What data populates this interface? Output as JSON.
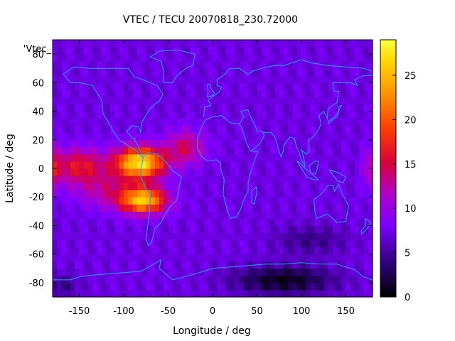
{
  "chart_data": {
    "type": "heatmap",
    "title": "VTEC / TECU 20070818_230.72000",
    "xlabel": "Longitude / deg",
    "ylabel": "Latitude / deg",
    "series_label": "'Vtec_",
    "xlim": [
      -180,
      180
    ],
    "ylim": [
      -90,
      90
    ],
    "x_ticks": [
      -150,
      -100,
      -50,
      0,
      50,
      100,
      150
    ],
    "y_ticks": [
      -80,
      -60,
      -40,
      -20,
      0,
      20,
      40,
      60,
      80
    ],
    "colorbar": {
      "min": 0,
      "max": 29,
      "ticks": [
        0,
        5,
        10,
        15,
        20,
        25
      ]
    },
    "grid_resolution_deg": 5,
    "field_description": {
      "background_tecu": 7.5,
      "features": [
        {
          "name": "equatorial-anomaly-peak-north",
          "lon": -80,
          "lat": 5,
          "tecu": 28
        },
        {
          "name": "equatorial-anomaly-peak-south",
          "lon": -80,
          "lat": -22,
          "tecu": 26
        },
        {
          "name": "pacific-enhancement",
          "lon": -150,
          "lat": 0,
          "tecu": 16
        },
        {
          "name": "western-atlantic-enhancement",
          "lon": -30,
          "lat": 15,
          "tecu": 16
        },
        {
          "name": "antarctic-low",
          "lon": 80,
          "lat": -75,
          "tecu": 1
        }
      ]
    }
  }
}
